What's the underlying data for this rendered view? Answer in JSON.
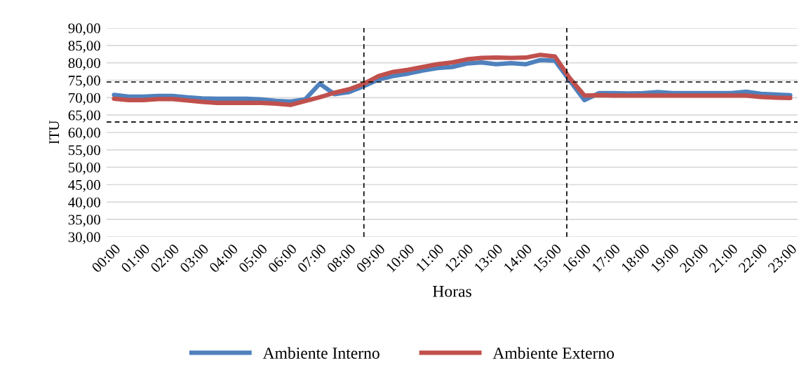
{
  "chart_data": {
    "type": "line",
    "xlabel": "Horas",
    "ylabel": "ITU",
    "x": [
      0,
      0.5,
      1,
      1.5,
      2,
      2.5,
      3,
      3.5,
      4,
      4.5,
      5,
      5.5,
      6,
      6.5,
      7,
      7.5,
      8,
      8.5,
      9,
      9.5,
      10,
      10.5,
      11,
      11.5,
      12,
      12.5,
      13,
      13.5,
      14,
      14.5,
      15,
      15.5,
      16,
      16.5,
      17,
      17.5,
      18,
      18.5,
      19,
      19.5,
      20,
      20.5,
      21,
      21.5,
      22,
      22.5,
      23
    ],
    "xlim": [
      -0.25,
      23.25
    ],
    "xticks": [
      {
        "value": 0,
        "label": "00:00"
      },
      {
        "value": 1,
        "label": "01:00"
      },
      {
        "value": 2,
        "label": "02:00"
      },
      {
        "value": 3,
        "label": "03:00"
      },
      {
        "value": 4,
        "label": "04:00"
      },
      {
        "value": 5,
        "label": "05:00"
      },
      {
        "value": 6,
        "label": "06:00"
      },
      {
        "value": 7,
        "label": "07:00"
      },
      {
        "value": 8,
        "label": "08:00"
      },
      {
        "value": 9,
        "label": "09:00"
      },
      {
        "value": 10,
        "label": "10:00"
      },
      {
        "value": 11,
        "label": "11:00"
      },
      {
        "value": 12,
        "label": "12:00"
      },
      {
        "value": 13,
        "label": "13:00"
      },
      {
        "value": 14,
        "label": "14:00"
      },
      {
        "value": 15,
        "label": "15:00"
      },
      {
        "value": 16,
        "label": "16:00"
      },
      {
        "value": 17,
        "label": "17:00"
      },
      {
        "value": 18,
        "label": "18:00"
      },
      {
        "value": 19,
        "label": "19:00"
      },
      {
        "value": 20,
        "label": "20:00"
      },
      {
        "value": 21,
        "label": "21:00"
      },
      {
        "value": 22,
        "label": "22:00"
      },
      {
        "value": 23,
        "label": "23:00"
      }
    ],
    "ylim": [
      30,
      90
    ],
    "yticks": [
      {
        "value": 30,
        "label": "30,00"
      },
      {
        "value": 35,
        "label": "35,00"
      },
      {
        "value": 40,
        "label": "40,00"
      },
      {
        "value": 45,
        "label": "45,00"
      },
      {
        "value": 50,
        "label": "50,00"
      },
      {
        "value": 55,
        "label": "55,00"
      },
      {
        "value": 60,
        "label": "60,00"
      },
      {
        "value": 65,
        "label": "65,00"
      },
      {
        "value": 70,
        "label": "70,00"
      },
      {
        "value": 75,
        "label": "75,00"
      },
      {
        "value": 80,
        "label": "80,00"
      },
      {
        "value": 85,
        "label": "85,00"
      },
      {
        "value": 90,
        "label": "90,00"
      }
    ],
    "series": [
      {
        "name": "Ambiente Interno",
        "color": "#4f81bd",
        "values": [
          70.8,
          70.3,
          70.3,
          70.5,
          70.5,
          70.1,
          69.8,
          69.7,
          69.7,
          69.7,
          69.5,
          69.1,
          68.9,
          69.5,
          74.0,
          71.0,
          71.6,
          73.3,
          75.2,
          76.2,
          76.9,
          77.8,
          78.5,
          78.8,
          79.8,
          80.1,
          79.6,
          79.9,
          79.6,
          80.8,
          80.6,
          74.9,
          69.3,
          71.3,
          71.3,
          71.2,
          71.3,
          71.6,
          71.3,
          71.3,
          71.3,
          71.3,
          71.3,
          71.7,
          71.1,
          70.9,
          70.7
        ]
      },
      {
        "name": "Ambiente Externo",
        "color": "#c0504d",
        "values": [
          69.7,
          69.3,
          69.3,
          69.6,
          69.6,
          69.2,
          68.8,
          68.5,
          68.5,
          68.5,
          68.5,
          68.3,
          67.9,
          69.0,
          70.1,
          71.4,
          72.4,
          74.0,
          76.2,
          77.4,
          78.0,
          78.8,
          79.6,
          80.1,
          81.0,
          81.4,
          81.5,
          81.4,
          81.5,
          82.3,
          81.8,
          75.6,
          70.6,
          70.7,
          70.6,
          70.6,
          70.6,
          70.6,
          70.6,
          70.6,
          70.6,
          70.6,
          70.6,
          70.6,
          70.2,
          70.0,
          69.9
        ]
      }
    ],
    "ref_lines": [
      {
        "axis": "y",
        "value": 74.5,
        "color": "#000000",
        "line_style": "dashed"
      },
      {
        "axis": "y",
        "value": 63.0,
        "color": "#000000",
        "line_style": "dashed"
      },
      {
        "axis": "x",
        "value": 8.5,
        "color": "#000000",
        "line_style": "dashed"
      },
      {
        "axis": "x",
        "value": 15.4,
        "color": "#000000",
        "line_style": "dashed"
      }
    ],
    "grid": "y",
    "legend": "bottom",
    "marker": "none",
    "line_style": "solid"
  }
}
